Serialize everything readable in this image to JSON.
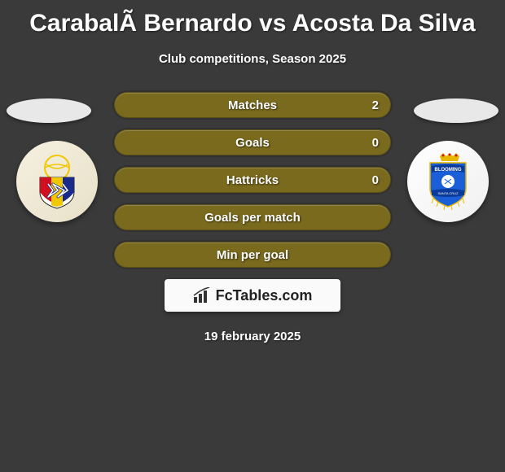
{
  "title": "CarabalÃ Bernardo vs Acosta Da Silva",
  "subtitle": "Club competitions, Season 2025",
  "date": "19 february 2025",
  "brand": "FcTables.com",
  "stat_bar_bg": "#7a6a1e",
  "stat_bar_border": "#5c5018",
  "stats": [
    {
      "label": "Matches",
      "value": "2"
    },
    {
      "label": "Goals",
      "value": "0"
    },
    {
      "label": "Hattricks",
      "value": "0"
    },
    {
      "label": "Goals per match",
      "value": ""
    },
    {
      "label": "Min per goal",
      "value": ""
    }
  ],
  "left_badge": {
    "circle_bg": "#f5f0e0",
    "shield_fill": "#ffffff",
    "stripe_yellow": "#f0c800",
    "stripe_red": "#d01020",
    "stripe_blue": "#1a2a8a",
    "ball_color": "#f0c800"
  },
  "right_badge": {
    "circle_bg": "#ffffff",
    "shield_fill": "#1a5fd8",
    "banner_fill": "#0a3a9a",
    "crown_color": "#e8b800",
    "text_color": "#ffffff"
  }
}
